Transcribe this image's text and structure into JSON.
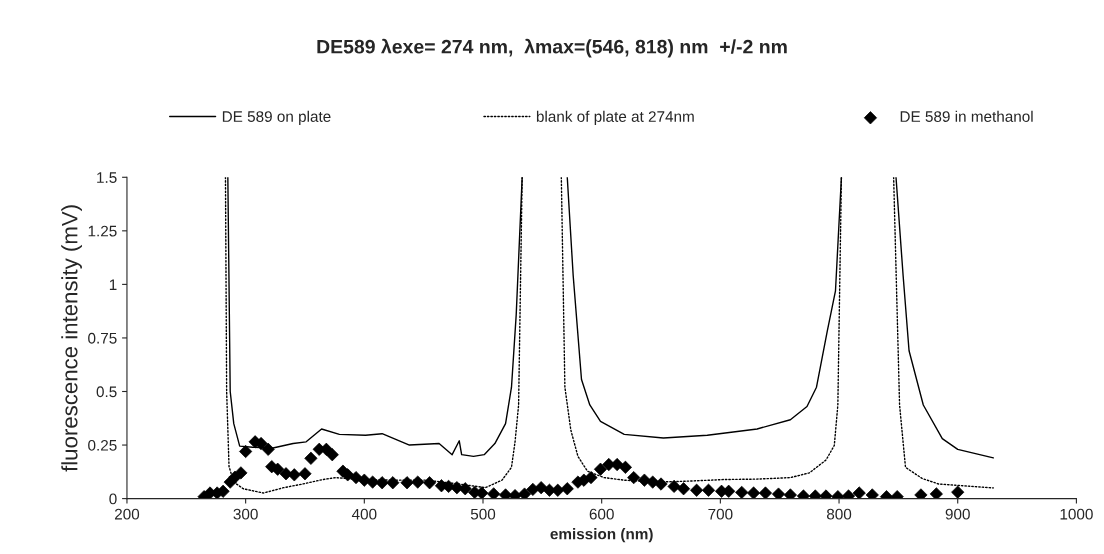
{
  "chart_data": {
    "type": "line",
    "title": "DE589 λexe= 274 nm,  λmax=(546, 818) nm  +/-2 nm",
    "xlabel": "emission (nm)",
    "ylabel": "fluorescence intensity (mV)",
    "xlim": [
      200,
      1000
    ],
    "xticks": [
      200,
      300,
      400,
      500,
      600,
      700,
      800,
      900,
      1000
    ],
    "ylim": [
      0,
      1.5
    ],
    "yticks": [
      0,
      0.25,
      0.5,
      0.75,
      1,
      1.25,
      1.5
    ],
    "grid": false,
    "legend": "top",
    "series": [
      {
        "name": "DE 589 on plate",
        "line_style": "solid",
        "marker": "none",
        "color": "#000000",
        "x": [
          285,
          287,
          290,
          295,
          306,
          323,
          340,
          351,
          364,
          379,
          401,
          415,
          438,
          463,
          474,
          480,
          482,
          492,
          501,
          510,
          519,
          524,
          528,
          533,
          540,
          571,
          576,
          583,
          590,
          599,
          619,
          652,
          689,
          731,
          759,
          773,
          781,
          790,
          797,
          802,
          820,
          848,
          854,
          859,
          871,
          887,
          900,
          930
        ],
        "values": [
          1.5,
          0.5,
          0.35,
          0.245,
          0.24,
          0.236,
          0.257,
          0.265,
          0.325,
          0.3,
          0.296,
          0.303,
          0.25,
          0.257,
          0.205,
          0.27,
          0.205,
          0.197,
          0.205,
          0.257,
          0.35,
          0.52,
          0.86,
          1.5,
          null,
          1.5,
          1.04,
          0.556,
          0.437,
          0.36,
          0.3,
          0.283,
          0.296,
          0.325,
          0.368,
          0.43,
          0.52,
          0.78,
          0.97,
          1.5,
          null,
          1.5,
          1.04,
          0.69,
          0.437,
          0.28,
          0.23,
          0.19
        ]
      },
      {
        "name": "blank of plate at 274nm",
        "line_style": "dotted",
        "marker": "none",
        "color": "#000000",
        "x": [
          283,
          284,
          286,
          290,
          298,
          315,
          332,
          348,
          365,
          376,
          396,
          424,
          452,
          480,
          502,
          516,
          524,
          527,
          530,
          533,
          550,
          566,
          569,
          574,
          580,
          588,
          602,
          619,
          647,
          675,
          703,
          731,
          759,
          775,
          789,
          796,
          799,
          802,
          825,
          846,
          851,
          856,
          870,
          884,
          930
        ],
        "values": [
          1.5,
          0.5,
          0.15,
          0.077,
          0.046,
          0.026,
          0.051,
          0.068,
          0.089,
          0.098,
          0.089,
          0.086,
          0.086,
          0.068,
          0.051,
          0.086,
          0.146,
          0.265,
          0.437,
          1.5,
          null,
          1.5,
          0.52,
          0.32,
          0.197,
          0.128,
          0.098,
          0.086,
          0.077,
          0.082,
          0.089,
          0.091,
          0.098,
          0.12,
          0.18,
          0.248,
          0.437,
          1.5,
          null,
          1.5,
          0.437,
          0.146,
          0.094,
          0.068,
          0.05
        ]
      },
      {
        "name": "DE 589 in methanol",
        "type": "scatter",
        "marker": "diamond",
        "color": "#000000",
        "x": [
          265,
          270,
          276,
          281,
          287,
          291,
          296,
          300,
          308,
          313,
          319,
          322,
          327,
          334,
          341,
          350,
          355,
          362,
          368,
          373,
          382,
          386,
          393,
          400,
          407,
          415,
          424,
          436,
          445,
          455,
          465,
          471,
          478,
          485,
          493,
          499,
          509,
          519,
          527,
          535,
          542,
          549,
          556,
          563,
          571,
          580,
          585,
          591,
          599,
          606,
          613,
          620,
          627,
          636,
          643,
          650,
          661,
          669,
          680,
          690,
          701,
          707,
          718,
          728,
          738,
          749,
          759,
          770,
          780,
          789,
          799,
          808,
          817,
          828,
          840,
          849,
          869,
          882,
          900
        ],
        "values": [
          0.009,
          0.026,
          0.026,
          0.034,
          0.077,
          0.1,
          0.12,
          0.22,
          0.265,
          0.257,
          0.23,
          0.149,
          0.137,
          0.116,
          0.111,
          0.116,
          0.188,
          0.23,
          0.23,
          0.205,
          0.128,
          0.111,
          0.098,
          0.086,
          0.077,
          0.074,
          0.074,
          0.074,
          0.077,
          0.074,
          0.06,
          0.057,
          0.051,
          0.046,
          0.029,
          0.026,
          0.022,
          0.017,
          0.014,
          0.021,
          0.043,
          0.051,
          0.039,
          0.039,
          0.046,
          0.077,
          0.086,
          0.098,
          0.137,
          0.159,
          0.159,
          0.146,
          0.098,
          0.086,
          0.077,
          0.068,
          0.057,
          0.046,
          0.039,
          0.039,
          0.034,
          0.034,
          0.029,
          0.026,
          0.026,
          0.021,
          0.017,
          0.012,
          0.012,
          0.012,
          0.009,
          0.012,
          0.026,
          0.017,
          0.009,
          0.009,
          0.017,
          0.022,
          0.03
        ]
      }
    ]
  }
}
